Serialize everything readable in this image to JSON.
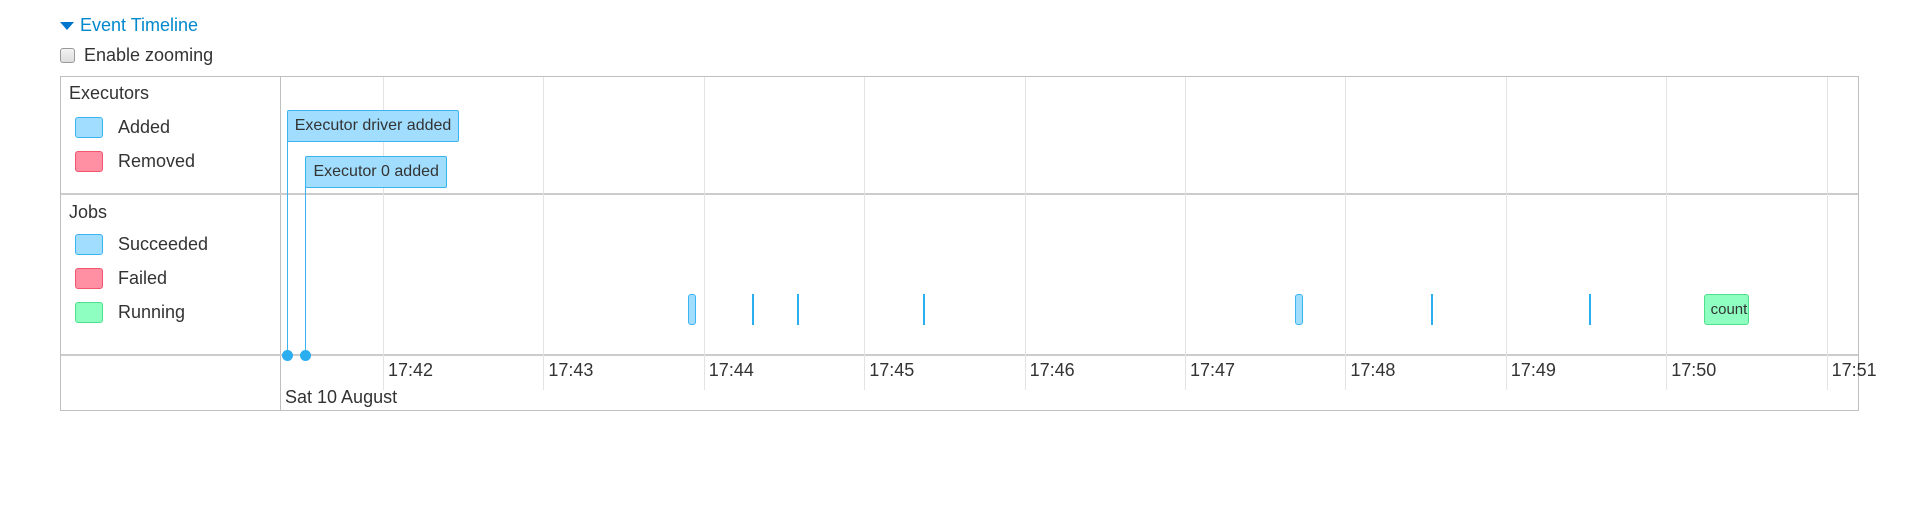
{
  "header": {
    "title": "Event Timeline",
    "zoom_label": "Enable zooming",
    "zoom_checked": false
  },
  "legend": {
    "executors": {
      "title": "Executors",
      "items": [
        {
          "label": "Added",
          "color": "#a0ddff"
        },
        {
          "label": "Removed",
          "color": "#ff8fa2"
        }
      ]
    },
    "jobs": {
      "title": "Jobs",
      "items": [
        {
          "label": "Succeeded",
          "color": "#a0ddff"
        },
        {
          "label": "Failed",
          "color": "#ff8fa2"
        },
        {
          "label": "Running",
          "color": "#8effc1"
        }
      ]
    }
  },
  "axis": {
    "ticks": [
      "17:42",
      "17:43",
      "17:44",
      "17:45",
      "17:46",
      "17:47",
      "17:48",
      "17:49",
      "17:50",
      "17:51"
    ],
    "date": "Sat 10 August"
  },
  "executor_events": [
    {
      "label": "Executor driver added",
      "time": "17:41:24",
      "status": "added"
    },
    {
      "label": "Executor 0 added",
      "time": "17:41:31",
      "status": "added"
    }
  ],
  "jobs": [
    {
      "start": "17:43:54",
      "end": "17:43:56",
      "status": "succeeded",
      "label": ""
    },
    {
      "start": "17:44:18",
      "end": "17:44:18",
      "status": "succeeded",
      "label": ""
    },
    {
      "start": "17:44:35",
      "end": "17:44:35",
      "status": "succeeded",
      "label": ""
    },
    {
      "start": "17:45:22",
      "end": "17:45:22",
      "status": "succeeded",
      "label": ""
    },
    {
      "start": "17:47:41",
      "end": "17:47:43",
      "status": "succeeded",
      "label": ""
    },
    {
      "start": "17:48:32",
      "end": "17:48:32",
      "status": "succeeded",
      "label": ""
    },
    {
      "start": "17:49:31",
      "end": "17:49:31",
      "status": "succeeded",
      "label": ""
    },
    {
      "start": "17:50:14",
      "end": "17:50:31",
      "status": "running",
      "label": "count"
    }
  ]
}
